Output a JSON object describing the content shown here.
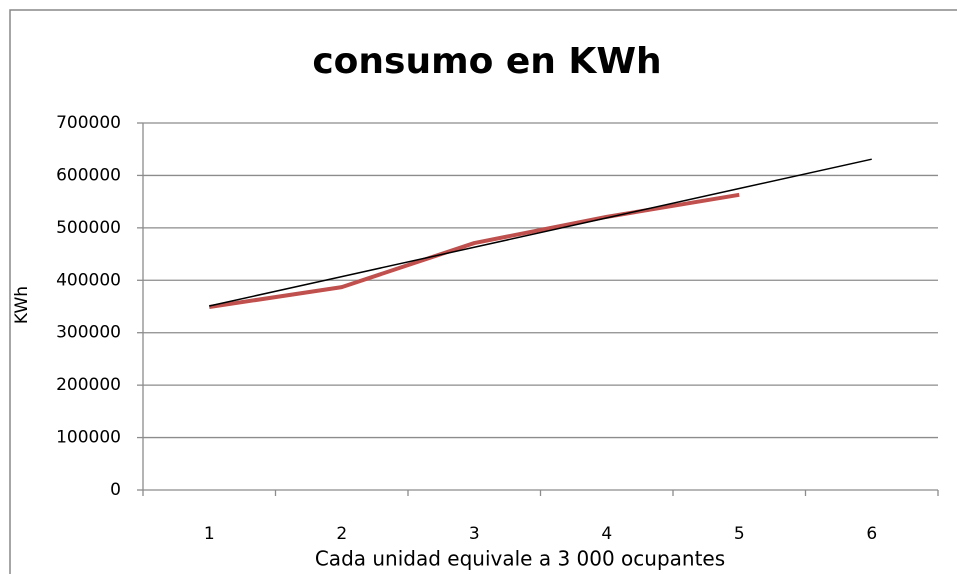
{
  "chart_data": {
    "type": "line",
    "title": "consumo en KWh",
    "x_label": "Cada unidad equivale a 3 000 ocupantes",
    "y_label": "KWh",
    "categories": [
      1,
      2,
      3,
      4,
      5,
      6
    ],
    "series": [
      {
        "color": "#c0504d",
        "values": [
          349000,
          387000,
          471000,
          521000,
          563000,
          null
        ]
      },
      {
        "color": "#000000",
        "values": [
          351000,
          407000,
          463000,
          519000,
          575000,
          631000
        ]
      }
    ],
    "ylim": [
      0,
      700000
    ],
    "yticks": [
      0,
      100000,
      200000,
      300000,
      400000,
      500000,
      600000,
      700000
    ],
    "grid": true
  }
}
